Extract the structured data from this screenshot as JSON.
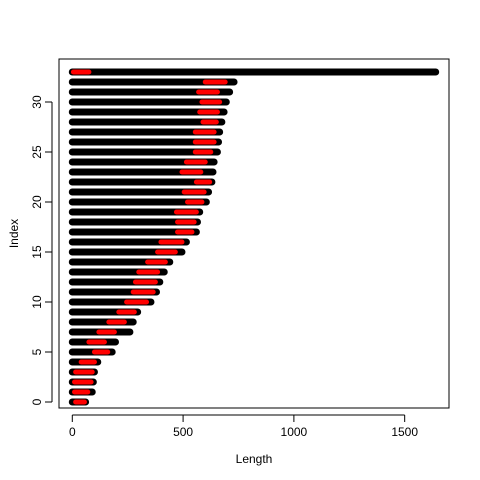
{
  "chart_data": {
    "type": "segment",
    "title": "",
    "xlabel": "Length",
    "ylabel": "Index",
    "xlim": [
      -60,
      1700
    ],
    "ylim": [
      -0.6,
      34.3
    ],
    "xticks": [
      0,
      500,
      1000,
      1500
    ],
    "yticks": [
      0,
      5,
      10,
      15,
      20,
      25,
      30
    ],
    "grid": false,
    "colors": {
      "segment": "#000000",
      "highlight": "#ff0000",
      "frame": "#000000",
      "background": "#ffffff"
    },
    "segments": [
      {
        "index": 0,
        "start": 0,
        "end": 60,
        "hl_start": 15,
        "hl_end": 55
      },
      {
        "index": 1,
        "start": 0,
        "end": 90,
        "hl_start": 10,
        "hl_end": 70
      },
      {
        "index": 2,
        "start": 0,
        "end": 95,
        "hl_start": 10,
        "hl_end": 85
      },
      {
        "index": 3,
        "start": 0,
        "end": 100,
        "hl_start": 15,
        "hl_end": 90
      },
      {
        "index": 4,
        "start": 0,
        "end": 115,
        "hl_start": 40,
        "hl_end": 100
      },
      {
        "index": 5,
        "start": 0,
        "end": 180,
        "hl_start": 100,
        "hl_end": 160
      },
      {
        "index": 6,
        "start": 0,
        "end": 195,
        "hl_start": 75,
        "hl_end": 145
      },
      {
        "index": 7,
        "start": 0,
        "end": 260,
        "hl_start": 120,
        "hl_end": 190
      },
      {
        "index": 8,
        "start": 0,
        "end": 275,
        "hl_start": 165,
        "hl_end": 235
      },
      {
        "index": 9,
        "start": 0,
        "end": 295,
        "hl_start": 210,
        "hl_end": 280
      },
      {
        "index": 10,
        "start": 0,
        "end": 355,
        "hl_start": 245,
        "hl_end": 335
      },
      {
        "index": 11,
        "start": 0,
        "end": 380,
        "hl_start": 275,
        "hl_end": 365
      },
      {
        "index": 12,
        "start": 0,
        "end": 395,
        "hl_start": 285,
        "hl_end": 375
      },
      {
        "index": 13,
        "start": 0,
        "end": 415,
        "hl_start": 300,
        "hl_end": 385
      },
      {
        "index": 14,
        "start": 0,
        "end": 440,
        "hl_start": 340,
        "hl_end": 420
      },
      {
        "index": 15,
        "start": 0,
        "end": 495,
        "hl_start": 385,
        "hl_end": 465
      },
      {
        "index": 16,
        "start": 0,
        "end": 515,
        "hl_start": 400,
        "hl_end": 495
      },
      {
        "index": 17,
        "start": 0,
        "end": 560,
        "hl_start": 475,
        "hl_end": 540
      },
      {
        "index": 18,
        "start": 0,
        "end": 565,
        "hl_start": 475,
        "hl_end": 550
      },
      {
        "index": 19,
        "start": 0,
        "end": 575,
        "hl_start": 470,
        "hl_end": 560
      },
      {
        "index": 20,
        "start": 0,
        "end": 605,
        "hl_start": 520,
        "hl_end": 585
      },
      {
        "index": 21,
        "start": 0,
        "end": 615,
        "hl_start": 505,
        "hl_end": 595
      },
      {
        "index": 22,
        "start": 0,
        "end": 630,
        "hl_start": 560,
        "hl_end": 620
      },
      {
        "index": 23,
        "start": 0,
        "end": 635,
        "hl_start": 495,
        "hl_end": 580
      },
      {
        "index": 24,
        "start": 0,
        "end": 640,
        "hl_start": 515,
        "hl_end": 600
      },
      {
        "index": 25,
        "start": 0,
        "end": 655,
        "hl_start": 555,
        "hl_end": 625
      },
      {
        "index": 26,
        "start": 0,
        "end": 660,
        "hl_start": 555,
        "hl_end": 640
      },
      {
        "index": 27,
        "start": 0,
        "end": 665,
        "hl_start": 555,
        "hl_end": 640
      },
      {
        "index": 28,
        "start": 0,
        "end": 675,
        "hl_start": 590,
        "hl_end": 650
      },
      {
        "index": 29,
        "start": 0,
        "end": 685,
        "hl_start": 575,
        "hl_end": 655
      },
      {
        "index": 30,
        "start": 0,
        "end": 695,
        "hl_start": 585,
        "hl_end": 665
      },
      {
        "index": 31,
        "start": 0,
        "end": 710,
        "hl_start": 570,
        "hl_end": 655
      },
      {
        "index": 32,
        "start": 0,
        "end": 730,
        "hl_start": 600,
        "hl_end": 690
      },
      {
        "index": 33,
        "start": 0,
        "end": 1640,
        "hl_start": 5,
        "hl_end": 75
      }
    ]
  }
}
